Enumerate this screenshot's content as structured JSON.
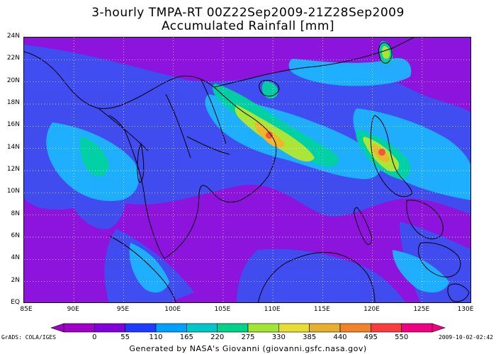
{
  "title_line1": "3-hourly TMPA-RT 00Z22Sep2009-21Z28Sep2009",
  "title_line2": "Accumulated Rainfall [mm]",
  "lat_labels": [
    "24N",
    "22N",
    "20N",
    "18N",
    "16N",
    "14N",
    "12N",
    "10N",
    "8N",
    "6N",
    "4N",
    "2N",
    "EQ"
  ],
  "lon_labels": [
    "85E",
    "90E",
    "95E",
    "100E",
    "105E",
    "110E",
    "115E",
    "120E",
    "125E",
    "130E"
  ],
  "colorbar": {
    "labels": [
      "0",
      "55",
      "110",
      "165",
      "220",
      "275",
      "330",
      "385",
      "440",
      "495",
      "550"
    ],
    "colors": [
      "#a000c8",
      "#8200dc",
      "#1e3cff",
      "#00a0ff",
      "#00c8c8",
      "#00d28c",
      "#a0e632",
      "#e6dc32",
      "#e6af2d",
      "#f08228",
      "#fa3c3c",
      "#f00082"
    ]
  },
  "grads_label": "GrADS: COLA/IGES",
  "timestamp": "2009-10-02-02:42",
  "footer": "Generated by NASA's Giovanni (giovanni.gsfc.nasa.gov)",
  "map": {
    "lon_range": [
      85,
      130
    ],
    "lat_range": [
      0,
      24
    ],
    "background_color": "#8c14dc",
    "rain_colors": {
      "low": "#3c50f0",
      "mid": "#1eb4ff",
      "med": "#00d2a0",
      "high": "#b4e632",
      "vhigh": "#f0b428",
      "extreme": "#f05a3c"
    }
  }
}
